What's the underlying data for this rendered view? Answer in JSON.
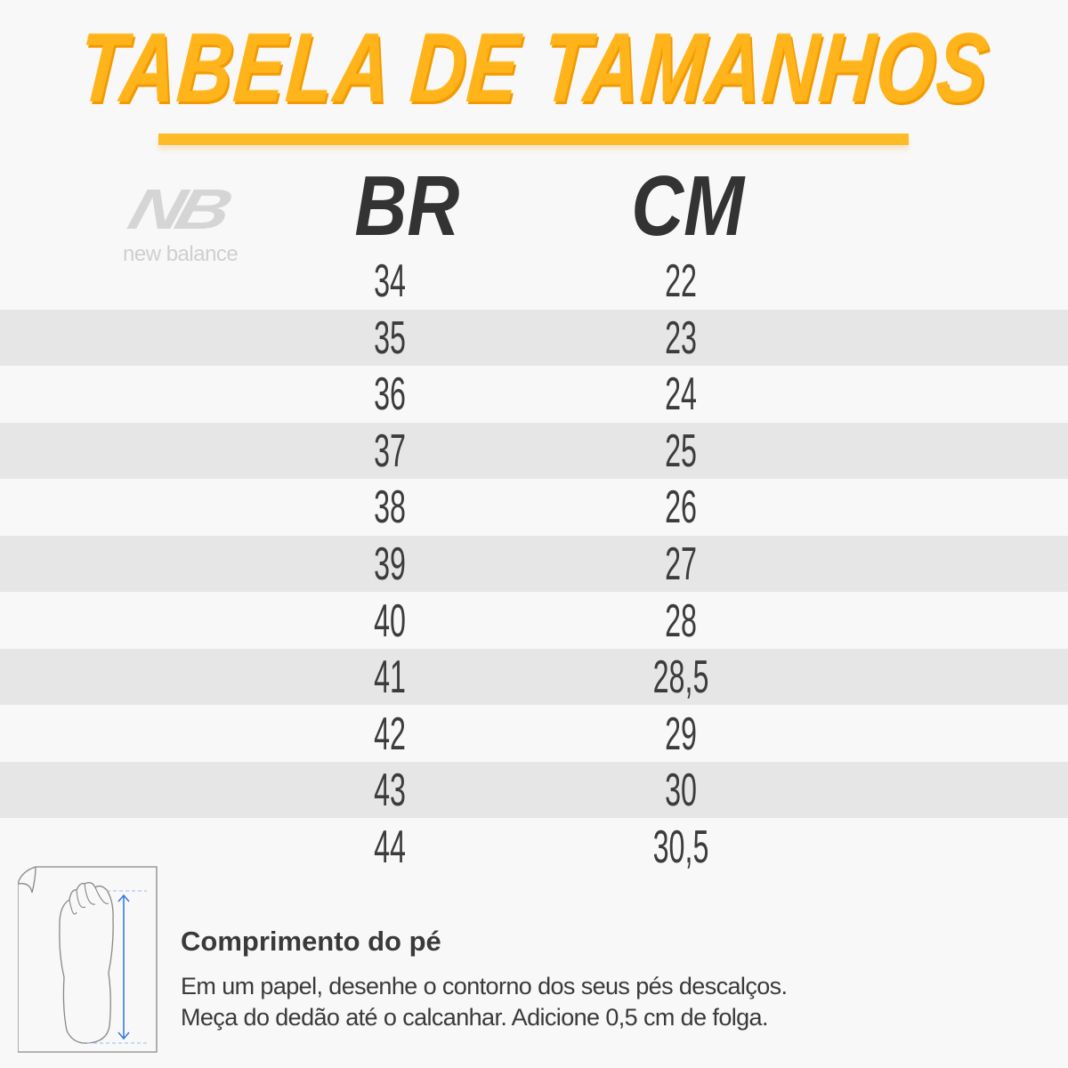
{
  "title": "TABELA DE TAMANHOS",
  "brand": {
    "logo_text": "new balance",
    "logo_mark": "NB"
  },
  "colors": {
    "title": "#ffb41c",
    "underline": "#fdbb27",
    "row_alt": "#e6e6e6",
    "background": "#f8f8f8",
    "arrow": "#3a7be0"
  },
  "table": {
    "headers": [
      "BR",
      "CM"
    ],
    "rows": [
      [
        "34",
        "22"
      ],
      [
        "35",
        "23"
      ],
      [
        "36",
        "24"
      ],
      [
        "37",
        "25"
      ],
      [
        "38",
        "26"
      ],
      [
        "39",
        "27"
      ],
      [
        "40",
        "28"
      ],
      [
        "41",
        "28,5"
      ],
      [
        "42",
        "29"
      ],
      [
        "43",
        "30"
      ],
      [
        "44",
        "30,5"
      ]
    ]
  },
  "instructions": {
    "heading": "Comprimento do pé",
    "line1": "Em um papel, desenhe o contorno dos seus pés descalços.",
    "line2": "Meça do dedão até o calcanhar. Adicione 0,5 cm de folga."
  },
  "icons": {
    "illustration": "foot-on-paper-measure-icon"
  }
}
